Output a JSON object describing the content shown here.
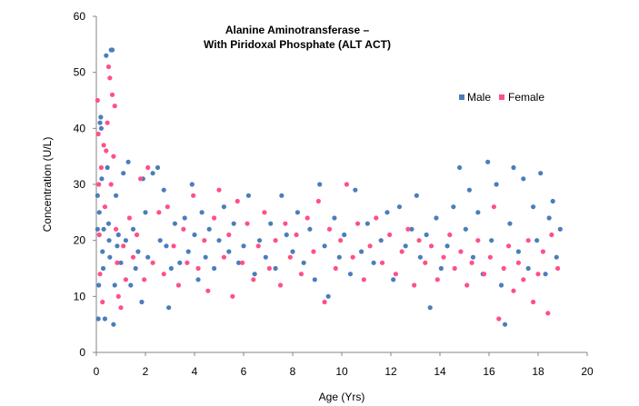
{
  "chart_data": {
    "type": "scatter",
    "title_line1": "Alanine Aminotransferase –",
    "title_line2": "With Piridoxal Phosphate (ALT ACT)",
    "xlabel": "Age (Yrs)",
    "ylabel": "Concentration (U/L)",
    "xlim": [
      0,
      20
    ],
    "ylim": [
      0,
      60
    ],
    "xticks": [
      0,
      2,
      4,
      6,
      8,
      10,
      12,
      14,
      16,
      18,
      20
    ],
    "yticks": [
      0,
      10,
      20,
      30,
      40,
      50,
      60
    ],
    "grid": false,
    "legend_position": "top-right",
    "series": [
      {
        "name": "Male",
        "color": "#4a7ebb",
        "points": [
          [
            0.05,
            28
          ],
          [
            0.05,
            22
          ],
          [
            0.08,
            6
          ],
          [
            0.1,
            12
          ],
          [
            0.12,
            25
          ],
          [
            0.15,
            41
          ],
          [
            0.18,
            42
          ],
          [
            0.2,
            40
          ],
          [
            0.22,
            31
          ],
          [
            0.25,
            18
          ],
          [
            0.28,
            15
          ],
          [
            0.3,
            22
          ],
          [
            0.35,
            6
          ],
          [
            0.4,
            53
          ],
          [
            0.45,
            33
          ],
          [
            0.5,
            23
          ],
          [
            0.52,
            20
          ],
          [
            0.55,
            17
          ],
          [
            0.6,
            54
          ],
          [
            0.65,
            54
          ],
          [
            0.7,
            5
          ],
          [
            0.75,
            12
          ],
          [
            0.8,
            28
          ],
          [
            0.85,
            19
          ],
          [
            0.9,
            21
          ],
          [
            1.0,
            16
          ],
          [
            1.1,
            32
          ],
          [
            1.2,
            20
          ],
          [
            1.3,
            34
          ],
          [
            1.4,
            12
          ],
          [
            1.5,
            22
          ],
          [
            1.6,
            15
          ],
          [
            1.7,
            18
          ],
          [
            1.85,
            9
          ],
          [
            1.9,
            31
          ],
          [
            2.0,
            25
          ],
          [
            2.1,
            17
          ],
          [
            2.3,
            32
          ],
          [
            2.5,
            33
          ],
          [
            2.6,
            20
          ],
          [
            2.75,
            29
          ],
          [
            2.85,
            19
          ],
          [
            2.95,
            8
          ],
          [
            3.05,
            15
          ],
          [
            3.2,
            23
          ],
          [
            3.4,
            16
          ],
          [
            3.6,
            24
          ],
          [
            3.75,
            18
          ],
          [
            3.9,
            30
          ],
          [
            4.0,
            21
          ],
          [
            4.15,
            13
          ],
          [
            4.3,
            25
          ],
          [
            4.45,
            17
          ],
          [
            4.6,
            22
          ],
          [
            4.8,
            15
          ],
          [
            5.0,
            20
          ],
          [
            5.2,
            26
          ],
          [
            5.4,
            18
          ],
          [
            5.6,
            23
          ],
          [
            5.8,
            16
          ],
          [
            6.0,
            19
          ],
          [
            6.2,
            28
          ],
          [
            6.45,
            14
          ],
          [
            6.65,
            20
          ],
          [
            6.9,
            17
          ],
          [
            7.1,
            23
          ],
          [
            7.3,
            15
          ],
          [
            7.55,
            28
          ],
          [
            7.75,
            21
          ],
          [
            8.0,
            18
          ],
          [
            8.2,
            25
          ],
          [
            8.45,
            16
          ],
          [
            8.7,
            22
          ],
          [
            8.9,
            13
          ],
          [
            9.1,
            30
          ],
          [
            9.3,
            19
          ],
          [
            9.45,
            10
          ],
          [
            9.7,
            24
          ],
          [
            9.9,
            17
          ],
          [
            10.1,
            21
          ],
          [
            10.35,
            14
          ],
          [
            10.55,
            29
          ],
          [
            10.8,
            18
          ],
          [
            11.05,
            23
          ],
          [
            11.3,
            16
          ],
          [
            11.6,
            20
          ],
          [
            11.85,
            25
          ],
          [
            12.1,
            13
          ],
          [
            12.35,
            26
          ],
          [
            12.6,
            19
          ],
          [
            12.85,
            22
          ],
          [
            13.05,
            28
          ],
          [
            13.2,
            17
          ],
          [
            13.45,
            21
          ],
          [
            13.6,
            8
          ],
          [
            13.85,
            24
          ],
          [
            14.05,
            15
          ],
          [
            14.3,
            19
          ],
          [
            14.55,
            26
          ],
          [
            14.8,
            33
          ],
          [
            15.05,
            22
          ],
          [
            15.2,
            29
          ],
          [
            15.35,
            17
          ],
          [
            15.55,
            25
          ],
          [
            15.75,
            14
          ],
          [
            15.95,
            34
          ],
          [
            16.1,
            20
          ],
          [
            16.3,
            30
          ],
          [
            16.5,
            12
          ],
          [
            16.65,
            5
          ],
          [
            16.85,
            23
          ],
          [
            17.0,
            33
          ],
          [
            17.2,
            18
          ],
          [
            17.4,
            31
          ],
          [
            17.6,
            15
          ],
          [
            17.8,
            26
          ],
          [
            17.95,
            20
          ],
          [
            18.1,
            32
          ],
          [
            18.3,
            14
          ],
          [
            18.45,
            24
          ],
          [
            18.6,
            27
          ],
          [
            18.75,
            17
          ],
          [
            18.9,
            22
          ]
        ]
      },
      {
        "name": "Female",
        "color": "#ff4f8b",
        "points": [
          [
            0.05,
            45
          ],
          [
            0.08,
            39
          ],
          [
            0.1,
            30
          ],
          [
            0.12,
            21
          ],
          [
            0.15,
            14
          ],
          [
            0.2,
            33
          ],
          [
            0.25,
            9
          ],
          [
            0.3,
            37
          ],
          [
            0.35,
            26
          ],
          [
            0.4,
            36
          ],
          [
            0.45,
            41
          ],
          [
            0.5,
            51
          ],
          [
            0.55,
            49
          ],
          [
            0.6,
            30
          ],
          [
            0.65,
            46
          ],
          [
            0.7,
            35
          ],
          [
            0.75,
            44
          ],
          [
            0.8,
            22
          ],
          [
            0.85,
            16
          ],
          [
            0.9,
            10
          ],
          [
            1.0,
            8
          ],
          [
            1.1,
            19
          ],
          [
            1.2,
            13
          ],
          [
            1.35,
            24
          ],
          [
            1.5,
            17
          ],
          [
            1.65,
            21
          ],
          [
            1.8,
            31
          ],
          [
            1.95,
            13
          ],
          [
            2.1,
            33
          ],
          [
            2.3,
            16
          ],
          [
            2.55,
            25
          ],
          [
            2.75,
            14
          ],
          [
            2.9,
            26
          ],
          [
            3.15,
            19
          ],
          [
            3.35,
            12
          ],
          [
            3.55,
            22
          ],
          [
            3.7,
            16
          ],
          [
            3.95,
            28
          ],
          [
            4.15,
            15
          ],
          [
            4.4,
            20
          ],
          [
            4.55,
            11
          ],
          [
            4.8,
            24
          ],
          [
            5.0,
            29
          ],
          [
            5.2,
            17
          ],
          [
            5.4,
            21
          ],
          [
            5.55,
            10
          ],
          [
            5.75,
            27
          ],
          [
            5.95,
            16
          ],
          [
            6.15,
            23
          ],
          [
            6.4,
            13
          ],
          [
            6.6,
            19
          ],
          [
            6.85,
            25
          ],
          [
            7.05,
            15
          ],
          [
            7.3,
            20
          ],
          [
            7.5,
            12
          ],
          [
            7.7,
            23
          ],
          [
            7.9,
            17
          ],
          [
            8.15,
            21
          ],
          [
            8.35,
            14
          ],
          [
            8.6,
            24
          ],
          [
            8.85,
            18
          ],
          [
            9.05,
            27
          ],
          [
            9.3,
            9
          ],
          [
            9.5,
            22
          ],
          [
            9.75,
            15
          ],
          [
            9.95,
            20
          ],
          [
            10.2,
            30
          ],
          [
            10.45,
            17
          ],
          [
            10.65,
            23
          ],
          [
            10.9,
            13
          ],
          [
            11.15,
            19
          ],
          [
            11.4,
            24
          ],
          [
            11.65,
            16
          ],
          [
            11.95,
            21
          ],
          [
            12.2,
            14
          ],
          [
            12.45,
            18
          ],
          [
            12.7,
            22
          ],
          [
            12.95,
            12
          ],
          [
            13.15,
            20
          ],
          [
            13.4,
            16
          ],
          [
            13.65,
            19
          ],
          [
            13.9,
            13
          ],
          [
            14.15,
            17
          ],
          [
            14.4,
            21
          ],
          [
            14.6,
            15
          ],
          [
            14.85,
            18
          ],
          [
            15.1,
            12
          ],
          [
            15.3,
            16
          ],
          [
            15.55,
            20
          ],
          [
            15.8,
            14
          ],
          [
            16.05,
            17
          ],
          [
            16.2,
            26
          ],
          [
            16.4,
            6
          ],
          [
            16.6,
            15
          ],
          [
            16.8,
            19
          ],
          [
            17.0,
            11
          ],
          [
            17.2,
            16
          ],
          [
            17.4,
            13
          ],
          [
            17.6,
            20
          ],
          [
            17.8,
            9
          ],
          [
            18.0,
            14
          ],
          [
            18.2,
            18
          ],
          [
            18.4,
            7
          ],
          [
            18.55,
            21
          ],
          [
            18.8,
            15
          ]
        ]
      }
    ]
  }
}
